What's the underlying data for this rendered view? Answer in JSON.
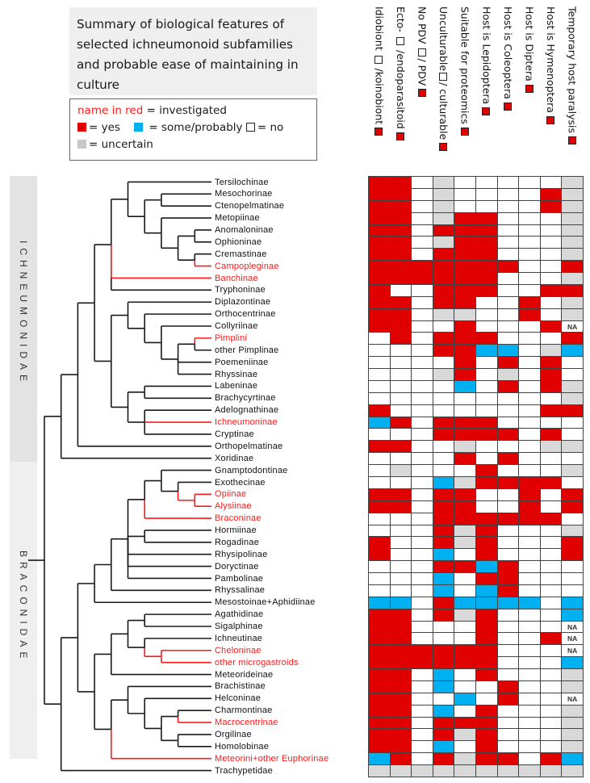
{
  "title": "Summary of biological features of selected ichneumonoid subfamilies and probable ease of maintaining in culture",
  "legend": {
    "red_name": "name in red",
    "red_name_meaning": "= investigated",
    "yes": "= yes",
    "some": "= some/probably",
    "no": "= no",
    "uncertain": "= uncertain"
  },
  "colors": {
    "yes": "#e00000",
    "some": "#00b0f0",
    "uncertain": "#d9d9d9",
    "no": "#ffffff",
    "investigated": "#ff1a1a"
  },
  "families": [
    "ICHNEUMONIDAE",
    "BRACONIDAE"
  ],
  "columns": [
    {
      "a": "Idiobiont ",
      "b": " /koinobiont",
      "hollow": true
    },
    {
      "a": "Ecto- ",
      "b": " /endoparasitoid",
      "hollow": true
    },
    {
      "a": "No PDV ",
      "b": "/ PDV",
      "hollow": true
    },
    {
      "a": "Unculturable",
      "b": "/ culturable",
      "hollow": true
    },
    {
      "a": "Suitable for proteomics",
      "b": "",
      "hollow": false
    },
    {
      "a": "Host is Lepidoptera",
      "b": "",
      "hollow": false
    },
    {
      "a": "Host  is Coleoptera",
      "b": "",
      "hollow": false
    },
    {
      "a": "Host is Diptera",
      "b": "",
      "hollow": false
    },
    {
      "a": "Host is Hymenoptera",
      "b": "",
      "hollow": false
    },
    {
      "a": "Temporary host paralysis",
      "b": "",
      "hollow": false
    }
  ],
  "cell_codes": {
    "R": "yes",
    "B": "some/probably",
    "W": "no",
    "G": "uncertain",
    "N": "NA"
  },
  "na_label": "NA",
  "taxa": [
    {
      "name": "Tersilochinae",
      "investigated": false,
      "cells": "RRWGWWWWWG"
    },
    {
      "name": "Mesochorinae",
      "investigated": false,
      "cells": "RRWGWWWWRG"
    },
    {
      "name": "Ctenopelmatinae",
      "investigated": false,
      "cells": "RRWGWWWWRG"
    },
    {
      "name": "Metopiinae",
      "investigated": false,
      "cells": "RRWGRRWWWG"
    },
    {
      "name": "Anomaloninae",
      "investigated": false,
      "cells": "RRWRRRWWWG"
    },
    {
      "name": "Ophioninae",
      "investigated": false,
      "cells": "RRWGRRWWWG"
    },
    {
      "name": "Cremastinae",
      "investigated": false,
      "cells": "RRWRRRWWWG"
    },
    {
      "name": "Campopleginae",
      "investigated": true,
      "cells": "RRRRRRRWWR"
    },
    {
      "name": "Banchinae",
      "investigated": true,
      "cells": "RRRRRRWWWG"
    },
    {
      "name": "Tryphoninae",
      "investigated": false,
      "cells": "RWWRRRWWRR"
    },
    {
      "name": "Diplazontinae",
      "investigated": false,
      "cells": "RRWRRWWRWG"
    },
    {
      "name": "Orthocentrinae",
      "investigated": false,
      "cells": "RRWGGWWRWG"
    },
    {
      "name": "Collyriinae",
      "investigated": false,
      "cells": "RRWWRWWWRN"
    },
    {
      "name": "Pimplini",
      "investigated": true,
      "cells": "WRWRRRWWWR"
    },
    {
      "name": "other Pimplinae",
      "investigated": false,
      "cells": "WWWRRBBWGB"
    },
    {
      "name": "Poemeniinae",
      "investigated": false,
      "cells": "WWWWRWRWRW"
    },
    {
      "name": "Rhyssinae",
      "investigated": false,
      "cells": "WWWGRWGWRW"
    },
    {
      "name": "Labeninae",
      "investigated": false,
      "cells": "WWWWBWRWRG"
    },
    {
      "name": "Brachycyrtinae",
      "investigated": false,
      "cells": "WWWWWWWWWG"
    },
    {
      "name": "Adelognathinae",
      "investigated": false,
      "cells": "RWWWWWWWRR"
    },
    {
      "name": "Ichneumoninae",
      "investigated": true,
      "cells": "BRWRRRWWWW"
    },
    {
      "name": "Cryptinae",
      "investigated": false,
      "cells": "WWWRRRRWRW"
    },
    {
      "name": "Orthopelmatinae",
      "investigated": false,
      "cells": "RRWWGWWWGG"
    },
    {
      "name": "Xoridinae",
      "investigated": false,
      "cells": "WWWWRWRWWW"
    },
    {
      "name": "Gnamptodontinae",
      "investigated": false,
      "cells": "WGWWWRWWWG"
    },
    {
      "name": "Exothecinae",
      "investigated": false,
      "cells": "WWWBGRRRRW"
    },
    {
      "name": "Opiinae",
      "investigated": true,
      "cells": "RRWRRWWRWR"
    },
    {
      "name": "Alysiinae",
      "investigated": true,
      "cells": "RRWRRWWRWR"
    },
    {
      "name": "Braconinae",
      "investigated": true,
      "cells": "WWWRRRRRRW"
    },
    {
      "name": "Hormiinae",
      "investigated": false,
      "cells": "WWWRGRWWWG"
    },
    {
      "name": "Rogadinae",
      "investigated": false,
      "cells": "RWWRGRWWWR"
    },
    {
      "name": "Rhysipolinae",
      "investigated": false,
      "cells": "RWWBWRWWWR"
    },
    {
      "name": "Doryctinae",
      "investigated": false,
      "cells": "WWWRRBRWWW"
    },
    {
      "name": "Pambolinae",
      "investigated": false,
      "cells": "WWWBWRRWWW"
    },
    {
      "name": "Rhyssalinae",
      "investigated": false,
      "cells": "WWWBWBRWWW"
    },
    {
      "name": "Mesostoinae+Aphidiinae",
      "investigated": false,
      "cells": "BBWRBBBBWB"
    },
    {
      "name": "Agathidinae",
      "investigated": false,
      "cells": "RRWRGRWWWB"
    },
    {
      "name": "Sigalphinae",
      "investigated": false,
      "cells": "RRWWWRWWWN"
    },
    {
      "name": "Ichneutinae",
      "investigated": false,
      "cells": "RRWWWRWWRN"
    },
    {
      "name": "Cheloninae",
      "investigated": true,
      "cells": "RRRRRRWWWN"
    },
    {
      "name": "other microgastroids",
      "investigated": true,
      "cells": "RRRRRRWWWB"
    },
    {
      "name": "Meteorideinae",
      "investigated": false,
      "cells": "RRWBWRWWWG"
    },
    {
      "name": "Brachistinae",
      "investigated": false,
      "cells": "RRWBWWRWWG"
    },
    {
      "name": "Helconinae",
      "investigated": false,
      "cells": "RRWWBWRWWN"
    },
    {
      "name": "Charmontinae",
      "investigated": false,
      "cells": "RRWBWRWWWG"
    },
    {
      "name": "Macrocentrinae",
      "investigated": true,
      "cells": "RRWRRRWWWG"
    },
    {
      "name": "Orgilinae",
      "investigated": false,
      "cells": "RRWRGRWWWG"
    },
    {
      "name": "Homolobinae",
      "investigated": false,
      "cells": "RRWBWRWWWG"
    },
    {
      "name": "Meteorini+other Euphorinae",
      "investigated": true,
      "cells": "BRWRGRRWRB"
    },
    {
      "name": "Trachypetidae",
      "investigated": false,
      "cells": "GGGGGGGGGG"
    }
  ],
  "tree": [
    [
      [
        [
          [
            [
              0,
              [
                [
                  1,
                  2
                ],
                [
                  3,
                  [
                    [
                      4,
                      5
                    ],
                    [
                      6,
                      7
                    ]
                  ]
                ]
              ]
            ],
            8,
            9
          ],
          [
            [
              10,
              [
                11,
                [
                  12,
                  [
                    [
                      13,
                      14
                    ],
                    15,
                    16
                  ]
                ]
              ]
            ],
            [
              [
                17,
                18
              ],
              [
                19,
                20,
                21
              ]
            ]
          ]
        ],
        22
      ],
      23
    ],
    [
      [
        [
          [
            [
              [
                [
                  24,
                  [
                    25,
                    [
                      26,
                      27
                    ]
                  ]
                ],
                28
              ],
              [
                29,
                30
              ],
              31,
              32,
              33
            ],
            34
          ],
          35
        ],
        [
          [
            [
              [
                36,
                37
              ],
              [
                38,
                [
                  39,
                  40
                ]
              ]
            ],
            41
          ],
          [
            [
              42,
              [
                43,
                [
                  [
                    44,
                    45
                  ],
                  [
                    46,
                    47
                  ]
                ]
              ]
            ],
            48
          ]
        ]
      ],
      49
    ]
  ]
}
